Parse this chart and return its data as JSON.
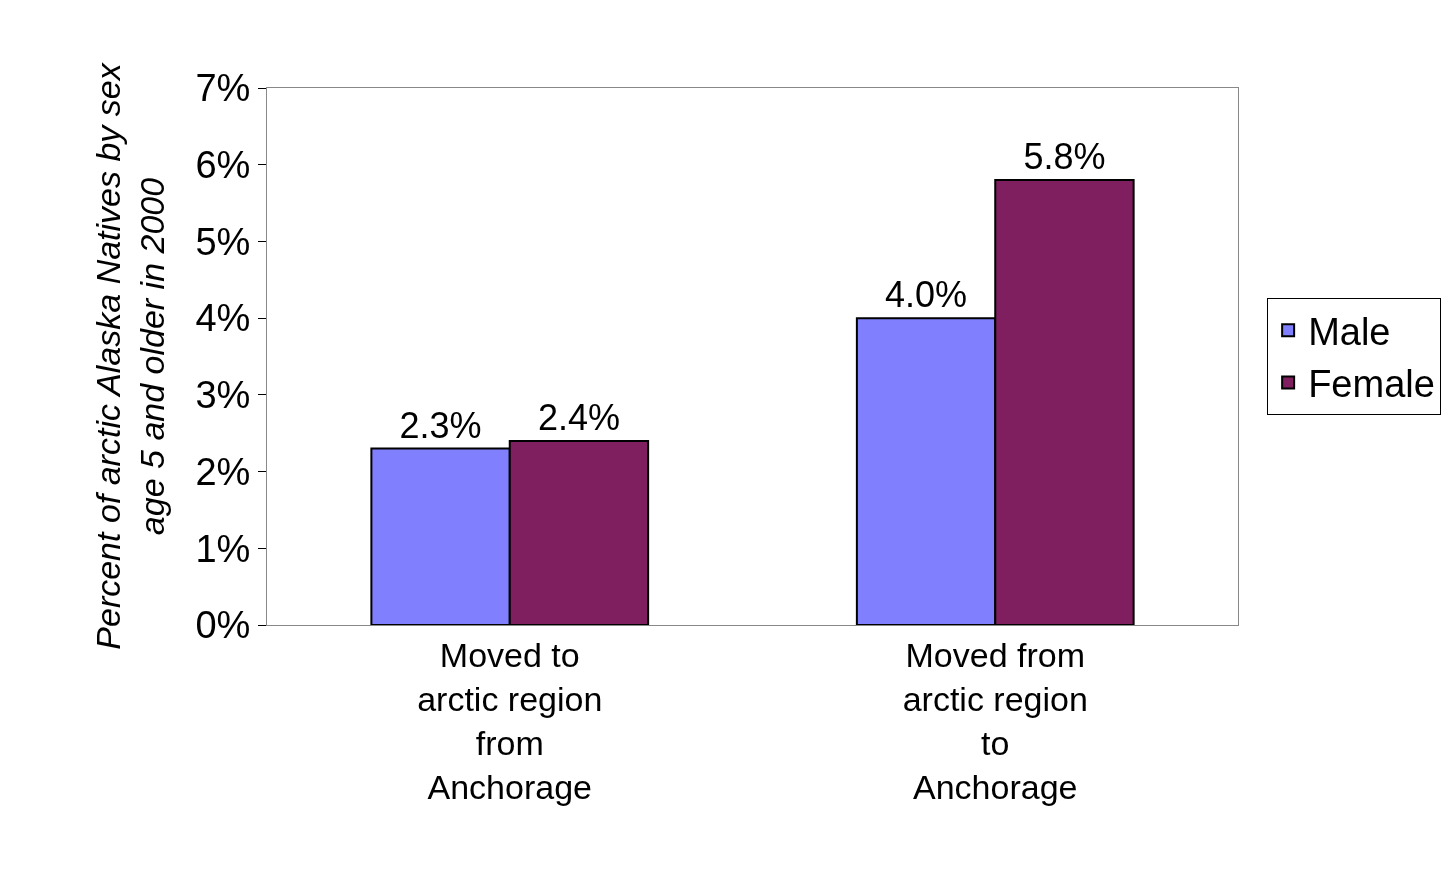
{
  "chart_data": {
    "type": "bar",
    "ylabel": "Percent of arctic Alaska Natives by sex\nage 5 and older in 2000",
    "categories": [
      "Moved to\narctic region\nfrom\nAnchorage",
      "Moved from\narctic region\nto\nAnchorage"
    ],
    "series": [
      {
        "name": "Male",
        "color": "#8080ff",
        "values": [
          2.3,
          4.0
        ],
        "value_labels": [
          "2.3%",
          "4.0%"
        ]
      },
      {
        "name": "Female",
        "color": "#7f1f5f",
        "values": [
          2.4,
          5.8
        ],
        "value_labels": [
          "2.4%",
          "5.8%"
        ]
      }
    ],
    "ylim": [
      0,
      7
    ],
    "yticks": [
      {
        "value": 0,
        "label": "0%"
      },
      {
        "value": 1,
        "label": "1%"
      },
      {
        "value": 2,
        "label": "2%"
      },
      {
        "value": 3,
        "label": "3%"
      },
      {
        "value": 4,
        "label": "4%"
      },
      {
        "value": 5,
        "label": "5%"
      },
      {
        "value": 6,
        "label": "6%"
      },
      {
        "value": 7,
        "label": "7%"
      }
    ],
    "grid": false,
    "legend": "right"
  }
}
